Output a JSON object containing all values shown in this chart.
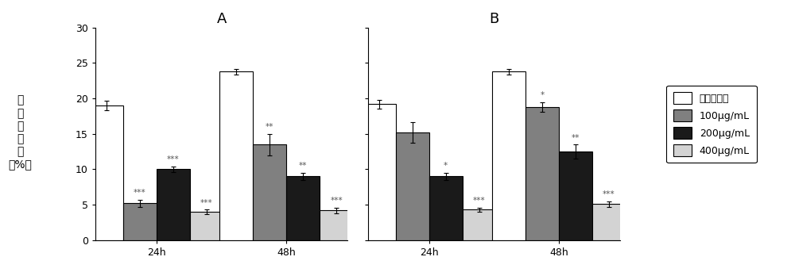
{
  "panel_A": {
    "title": "A",
    "groups": [
      "24h",
      "48h"
    ],
    "values": [
      [
        19.0,
        5.2,
        10.0,
        4.0
      ],
      [
        23.8,
        13.5,
        9.0,
        4.2
      ]
    ],
    "errors": [
      [
        0.7,
        0.5,
        0.4,
        0.3
      ],
      [
        0.4,
        1.5,
        0.5,
        0.4
      ]
    ],
    "significance": [
      [
        "",
        "***",
        "***",
        "***"
      ],
      [
        "",
        "**",
        "**",
        "***"
      ]
    ]
  },
  "panel_B": {
    "title": "B",
    "groups": [
      "24h",
      "48h"
    ],
    "values": [
      [
        19.2,
        15.2,
        9.0,
        4.3
      ],
      [
        23.8,
        18.8,
        12.5,
        5.1
      ]
    ],
    "errors": [
      [
        0.6,
        1.5,
        0.5,
        0.3
      ],
      [
        0.4,
        0.7,
        1.0,
        0.4
      ]
    ],
    "significance": [
      [
        "",
        "",
        "*",
        "***"
      ],
      [
        "",
        "*",
        "**",
        "***"
      ]
    ]
  },
  "bar_colors": [
    "#ffffff",
    "#808080",
    "#1a1a1a",
    "#d3d3d3"
  ],
  "bar_edgecolor": "#000000",
  "bar_width": 0.18,
  "ylim": [
    0,
    30
  ],
  "yticks": [
    0,
    5,
    10,
    15,
    20,
    25,
    30
  ],
  "ylabel_lines": [
    "细",
    "胞",
    "迁",
    "移",
    "率",
    "（%）"
  ],
  "legend_labels": [
    "空白对照组",
    "100μg/mL",
    "200μg/mL",
    "400μg/mL"
  ],
  "sig_fontsize": 7.5,
  "tick_fontsize": 9,
  "label_fontsize": 10,
  "title_fontsize": 13,
  "capsize": 2.5
}
